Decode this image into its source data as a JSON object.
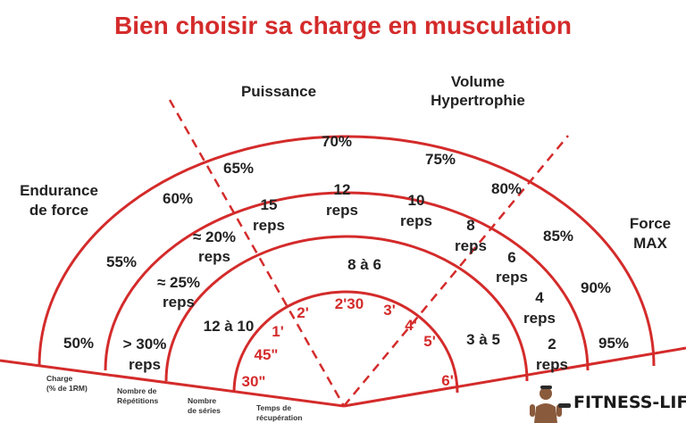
{
  "title": "Bien choisir sa charge en musculation",
  "zones": {
    "endurance_1": "Endurance",
    "endurance_2": "de force",
    "puissance": "Puissance",
    "volume_1": "Volume",
    "volume_2": "Hypertrophie",
    "force_1": "Force",
    "force_2": "MAX"
  },
  "charges": [
    "50%",
    "55%",
    "60%",
    "65%",
    "70%",
    "75%",
    "80%",
    "85%",
    "90%",
    "95%"
  ],
  "repetitions": [
    {
      "line1": "> 30%",
      "line2": "reps"
    },
    {
      "line1": "≈ 25%",
      "line2": "reps"
    },
    {
      "line1": "≈ 20%",
      "line2": "reps"
    },
    {
      "line1": "15",
      "line2": "reps"
    },
    {
      "line1": "12",
      "line2": "reps"
    },
    {
      "line1": "10",
      "line2": "reps"
    },
    {
      "line1": "8",
      "line2": "reps"
    },
    {
      "line1": "6",
      "line2": "reps"
    },
    {
      "line1": "4",
      "line2": "reps"
    },
    {
      "line1": "2",
      "line2": "reps"
    }
  ],
  "series": [
    "12 à 10",
    "8 à 6",
    "3 à 5"
  ],
  "recuperation": [
    "30\"",
    "45\"",
    "1'",
    "2'",
    "2'30",
    "3'",
    "4'",
    "5'",
    "6'"
  ],
  "axis_labels": {
    "charge_1": "Charge",
    "charge_2": "(% de 1RM)",
    "reps_1": "Nombre de",
    "reps_2": "Répétitions",
    "series_1": "Nombre",
    "series_2": "de séries",
    "recup_1": "Temps de",
    "recup_2": "récupération"
  },
  "logo": {
    "text": "FITNESS-LIFE"
  },
  "colors": {
    "accent": "#d42b2b",
    "text": "#222222"
  }
}
